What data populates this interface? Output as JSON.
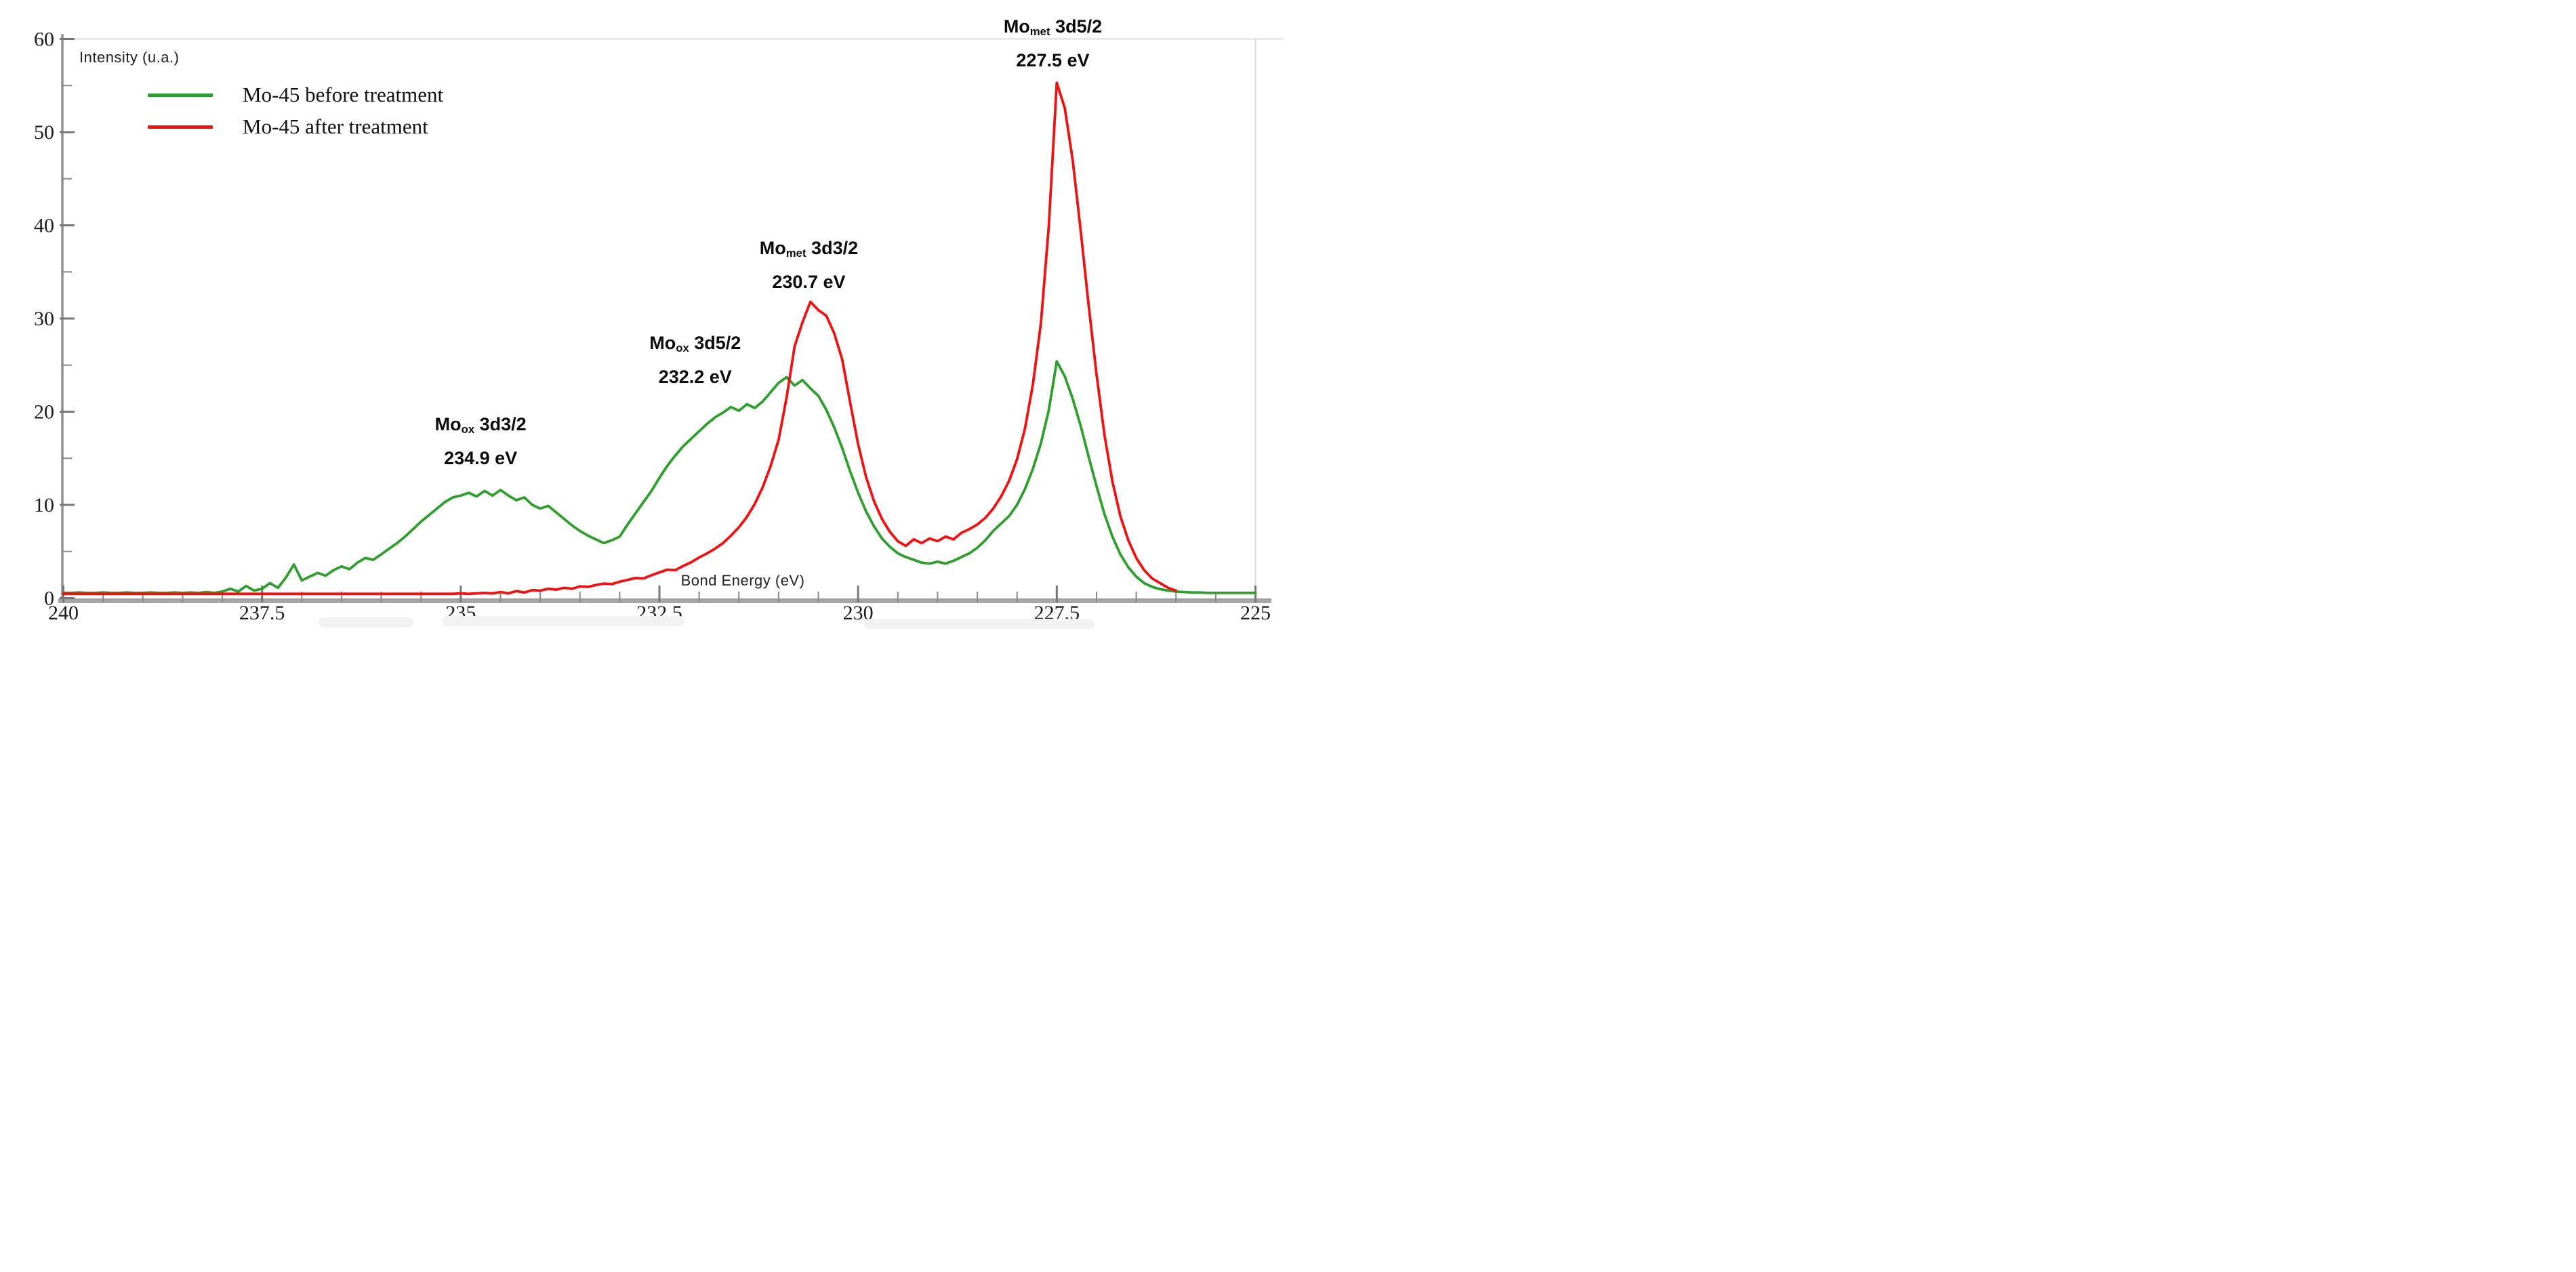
{
  "chart_data": {
    "type": "line",
    "title": "",
    "xlabel": "Bond Energy (eV)",
    "ylabel": "Intensity (u.a.)",
    "x_axis": {
      "min": 225,
      "max": 240,
      "direction": "decreasing-left-to-right",
      "major_ticks": [
        240,
        237.5,
        235,
        232.5,
        230,
        227.5,
        225
      ],
      "tick_labels": [
        "240",
        "237.5",
        "235",
        "232.5",
        "230",
        "227.5",
        "225"
      ],
      "minor_tick_step": 0.5
    },
    "y_axis": {
      "min": 0,
      "max": 60,
      "major_ticks": [
        0,
        10,
        20,
        30,
        40,
        50,
        60
      ],
      "tick_labels": [
        "0",
        "10",
        "20",
        "30",
        "40",
        "50",
        "60"
      ],
      "minor_tick_step": 5,
      "gridline_at": 60
    },
    "legend_position": "top-left-inside",
    "grid": "top-line-only",
    "series": [
      {
        "name": "Mo-45 before treatment",
        "color": "#2f9e2e",
        "x_start": 240.0,
        "x_step": -0.1,
        "values": [
          0.55,
          0.55,
          0.6,
          0.55,
          0.55,
          0.6,
          0.55,
          0.55,
          0.6,
          0.55,
          0.55,
          0.6,
          0.55,
          0.55,
          0.6,
          0.55,
          0.6,
          0.55,
          0.65,
          0.55,
          0.7,
          1.0,
          0.7,
          1.3,
          0.8,
          1.0,
          1.6,
          1.1,
          2.2,
          3.6,
          1.9,
          2.3,
          2.7,
          2.4,
          3.0,
          3.4,
          3.1,
          3.8,
          4.3,
          4.1,
          4.7,
          5.3,
          5.9,
          6.6,
          7.4,
          8.2,
          8.9,
          9.6,
          10.3,
          10.8,
          11.0,
          11.3,
          10.9,
          11.5,
          11.0,
          11.6,
          11.0,
          10.5,
          10.8,
          10.0,
          9.6,
          9.9,
          9.2,
          8.5,
          7.8,
          7.2,
          6.7,
          6.3,
          5.9,
          6.2,
          6.6,
          7.9,
          9.1,
          10.3,
          11.5,
          12.9,
          14.2,
          15.3,
          16.3,
          17.1,
          17.9,
          18.7,
          19.4,
          19.9,
          20.5,
          20.1,
          20.8,
          20.4,
          21.1,
          22.1,
          23.1,
          23.7,
          22.8,
          23.4,
          22.5,
          21.7,
          20.2,
          18.3,
          16.1,
          13.6,
          11.3,
          9.3,
          7.7,
          6.4,
          5.5,
          4.8,
          4.4,
          4.1,
          3.8,
          3.7,
          3.9,
          3.7,
          4.0,
          4.4,
          4.8,
          5.4,
          6.2,
          7.2,
          8.0,
          8.8,
          10.0,
          11.7,
          13.9,
          16.6,
          20.2,
          25.4,
          23.8,
          21.4,
          18.5,
          15.2,
          12.0,
          9.0,
          6.6,
          4.7,
          3.3,
          2.3,
          1.6,
          1.2,
          0.95,
          0.8,
          0.7,
          0.65,
          0.6,
          0.6,
          0.55,
          0.55,
          0.55,
          0.55,
          0.55,
          0.55,
          0.55
        ]
      },
      {
        "name": "Mo-45 after treatment",
        "color": "#ee1212",
        "x_start": 240.0,
        "x_step": -0.1,
        "values": [
          0.45,
          0.45,
          0.45,
          0.45,
          0.45,
          0.45,
          0.45,
          0.45,
          0.45,
          0.45,
          0.45,
          0.45,
          0.45,
          0.45,
          0.45,
          0.45,
          0.45,
          0.45,
          0.45,
          0.45,
          0.45,
          0.45,
          0.45,
          0.45,
          0.45,
          0.45,
          0.45,
          0.45,
          0.45,
          0.45,
          0.45,
          0.45,
          0.45,
          0.45,
          0.45,
          0.45,
          0.45,
          0.45,
          0.45,
          0.45,
          0.45,
          0.45,
          0.45,
          0.45,
          0.45,
          0.45,
          0.45,
          0.45,
          0.45,
          0.45,
          0.5,
          0.45,
          0.5,
          0.55,
          0.5,
          0.65,
          0.5,
          0.75,
          0.6,
          0.85,
          0.8,
          1.0,
          0.9,
          1.1,
          1.0,
          1.25,
          1.2,
          1.4,
          1.55,
          1.5,
          1.75,
          1.95,
          2.15,
          2.1,
          2.45,
          2.75,
          3.05,
          3.0,
          3.45,
          3.85,
          4.35,
          4.8,
          5.3,
          5.9,
          6.7,
          7.6,
          8.7,
          10.1,
          11.9,
          14.2,
          17.0,
          21.5,
          27.0,
          29.6,
          31.8,
          30.9,
          30.3,
          28.4,
          25.6,
          21.0,
          16.5,
          13.0,
          10.4,
          8.5,
          7.1,
          6.1,
          5.6,
          6.3,
          5.9,
          6.4,
          6.1,
          6.6,
          6.3,
          7.0,
          7.4,
          7.9,
          8.6,
          9.6,
          10.9,
          12.6,
          14.9,
          18.2,
          23.0,
          29.5,
          40.0,
          55.3,
          52.6,
          47.0,
          39.5,
          31.5,
          24.0,
          17.5,
          12.5,
          8.8,
          6.2,
          4.3,
          3.0,
          2.1,
          1.6,
          1.1,
          0.8
        ]
      }
    ],
    "annotations": [
      {
        "pre": "Mo",
        "sub": "ox",
        "post": " 3d3/2",
        "energy": "234.9 eV",
        "anchor_ev": 234.75,
        "anchor_value": 20.2
      },
      {
        "pre": "Mo",
        "sub": "ox",
        "post": " 3d5/2",
        "energy": "232.2 eV",
        "anchor_ev": 232.05,
        "anchor_value": 28.9
      },
      {
        "pre": "Mo",
        "sub": "met",
        "post": " 3d3/2",
        "energy": "230.7 eV",
        "anchor_ev": 230.62,
        "anchor_value": 39.1
      },
      {
        "pre": "Mo",
        "sub": "met",
        "post": " 3d5/2",
        "energy": "227.5 eV",
        "anchor_ev": 227.55,
        "anchor_value": 62.9
      }
    ]
  },
  "legend": {
    "items": [
      {
        "label": "Mo-45 before treatment",
        "color": "#2f9e2e"
      },
      {
        "label": "Mo-45 after treatment",
        "color": "#ee1212"
      }
    ]
  },
  "colors": {
    "before_series": "#2f9e2e",
    "after_series": "#ee1212",
    "axis": "#9b9b9b",
    "tick": "#777777",
    "gridline": "#e4e4e4",
    "text": "#1a1a1a"
  }
}
